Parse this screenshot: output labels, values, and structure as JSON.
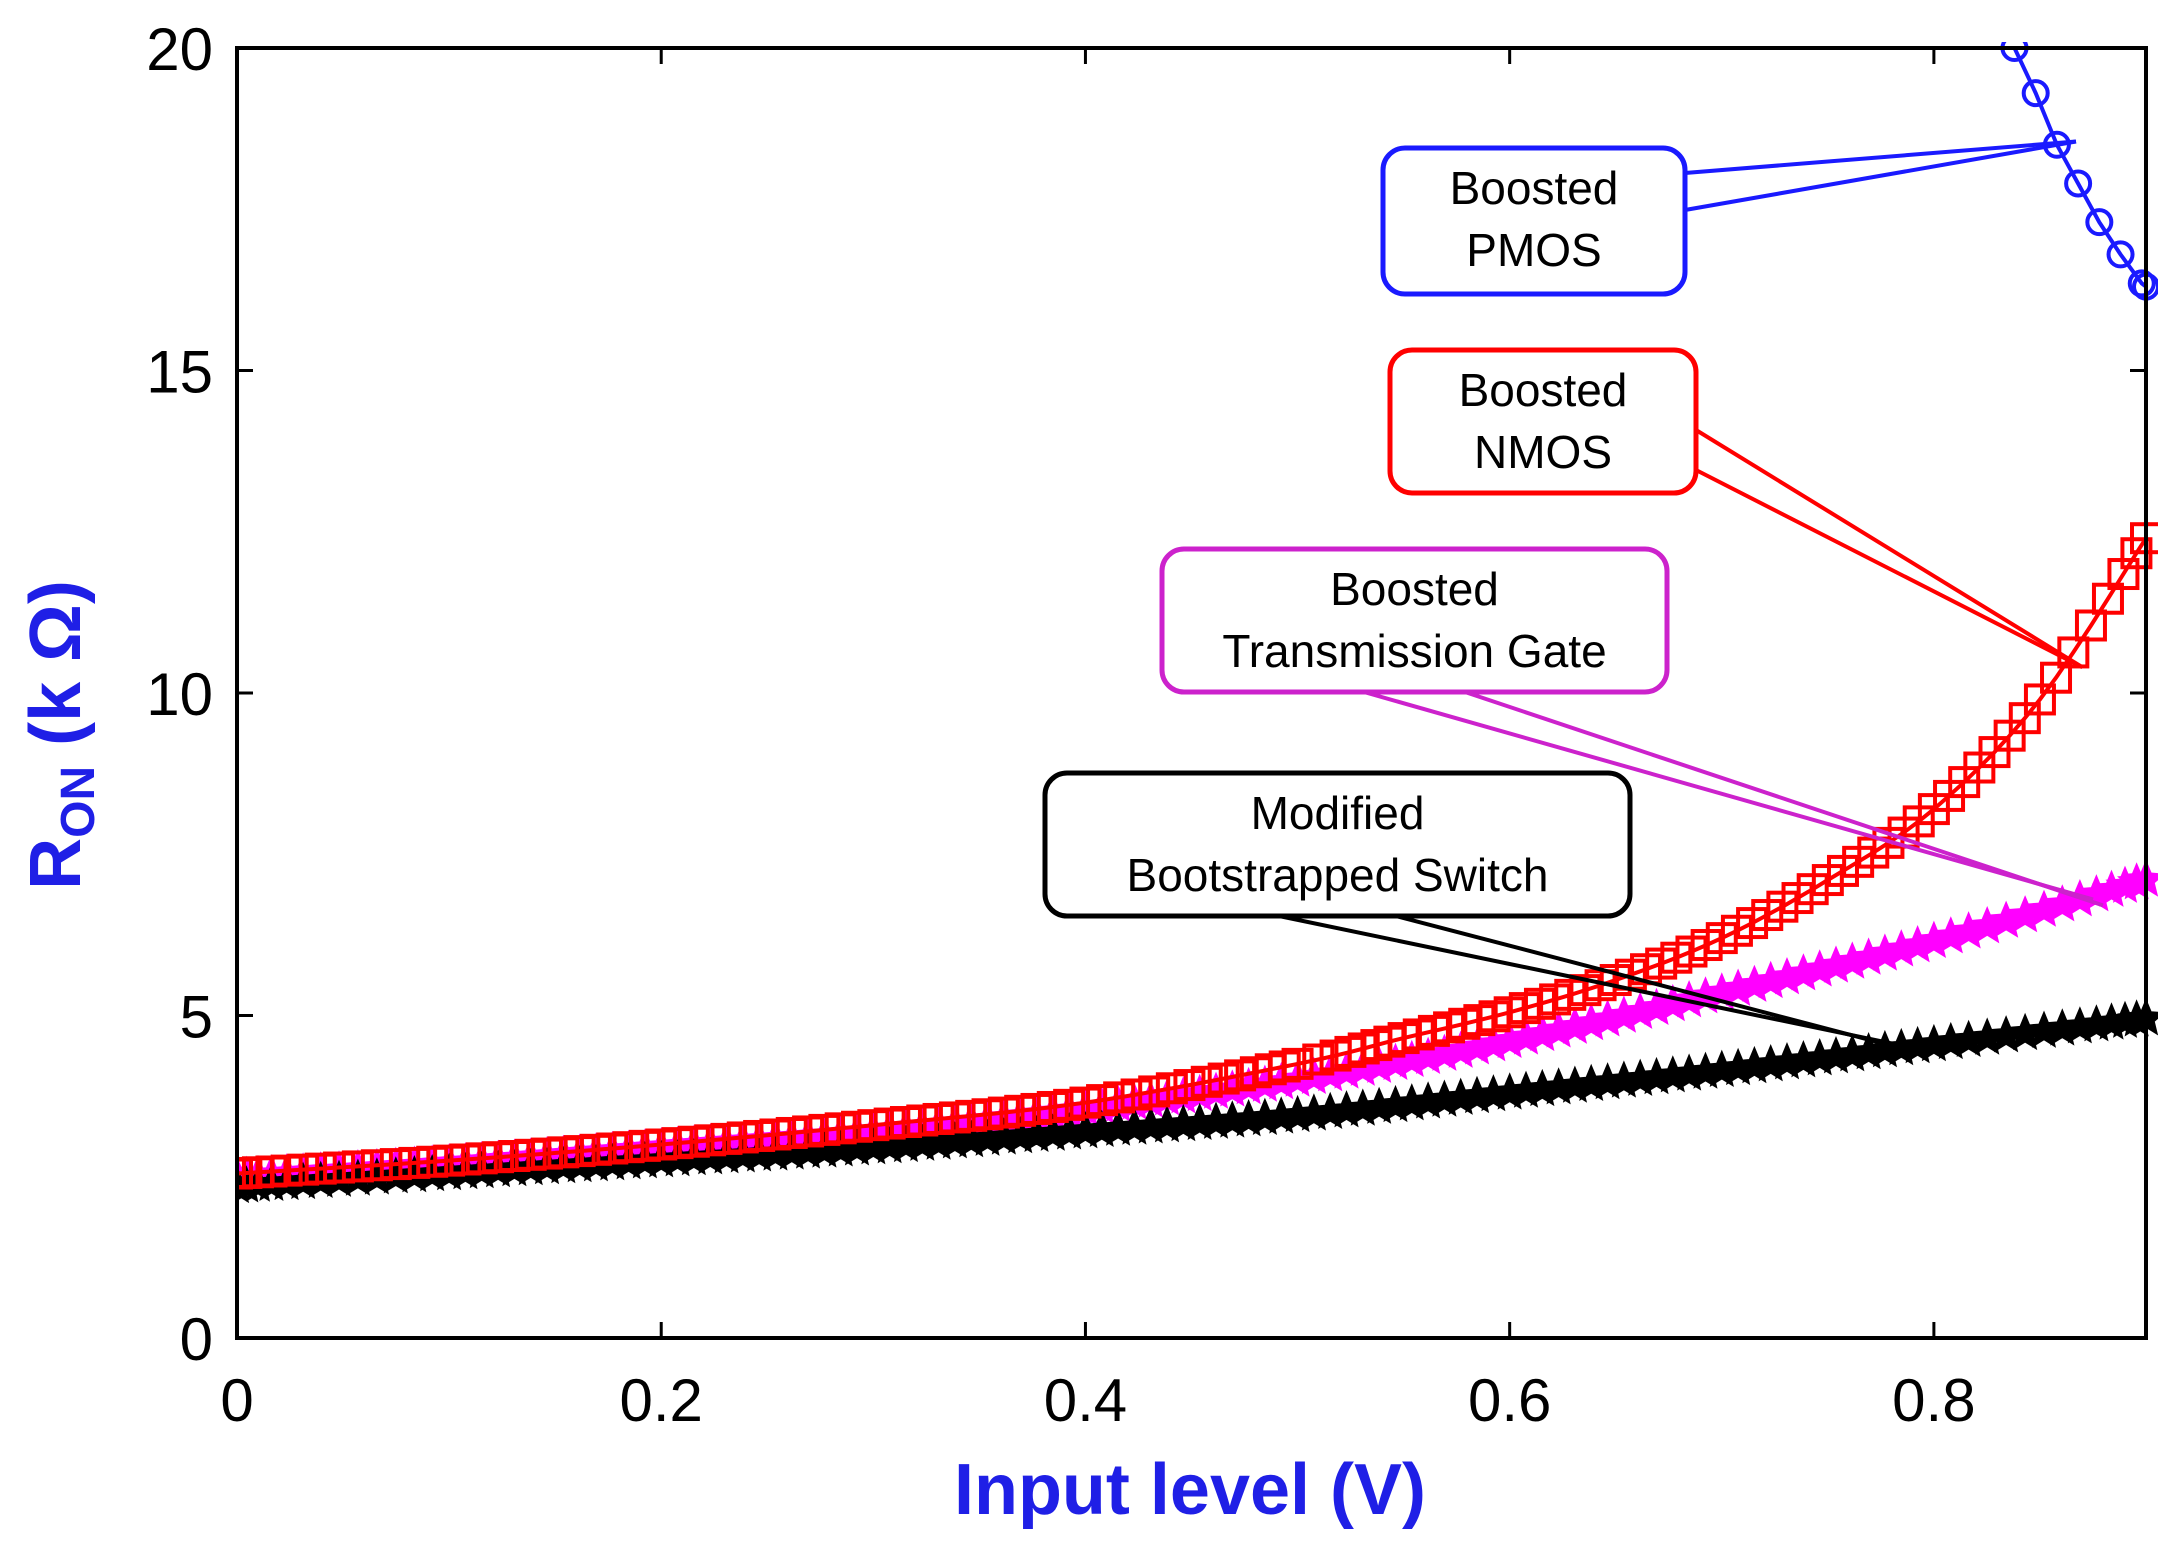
{
  "chart_data": {
    "type": "line",
    "title": "",
    "xlabel": "Input level (V)",
    "ylabel_main": "R",
    "ylabel_sub": "ON",
    "ylabel_unit": " (k Ω)",
    "axis_title_color": "#1f1fe6",
    "xlim": [
      0,
      0.9
    ],
    "ylim": [
      0,
      20
    ],
    "x_ticks": [
      0,
      0.2,
      0.4,
      0.6,
      0.8
    ],
    "x_tick_labels": [
      "0",
      "0.2",
      "0.4",
      "0.6",
      "0.8"
    ],
    "y_ticks": [
      0,
      5,
      10,
      15,
      20
    ],
    "y_tick_labels": [
      "0",
      "5",
      "10",
      "15",
      "20"
    ],
    "grid": false,
    "series": [
      {
        "id": "pmos",
        "name": "Boosted PMOS",
        "color": "#1a1aff",
        "marker": "circle",
        "x": [
          0.838,
          0.848,
          0.858,
          0.868,
          0.878,
          0.888,
          0.898,
          0.9
        ],
        "y": [
          20.0,
          19.3,
          18.5,
          17.9,
          17.3,
          16.8,
          16.35,
          16.3
        ]
      },
      {
        "id": "nmos",
        "name": "Boosted NMOS",
        "color": "#ff0000",
        "marker": "square",
        "x": [
          0,
          0.1,
          0.2,
          0.3,
          0.4,
          0.5,
          0.55,
          0.6,
          0.65,
          0.7,
          0.75,
          0.8,
          0.85,
          0.9
        ],
        "y": [
          2.55,
          2.75,
          3.0,
          3.3,
          3.65,
          4.25,
          4.65,
          5.05,
          5.55,
          6.2,
          7.1,
          8.2,
          9.9,
          12.4
        ]
      },
      {
        "id": "tg",
        "name": "Boosted Transmission Gate",
        "color": "#ff00ff",
        "marker": "star",
        "x": [
          0,
          0.1,
          0.2,
          0.3,
          0.4,
          0.5,
          0.6,
          0.7,
          0.8,
          0.9
        ],
        "y": [
          2.5,
          2.7,
          2.95,
          3.2,
          3.55,
          4.0,
          4.6,
          5.35,
          6.15,
          7.1
        ]
      },
      {
        "id": "mbs",
        "name": "Modified Bootstrapped Switch",
        "color": "#000000",
        "marker": "star",
        "x": [
          0,
          0.1,
          0.2,
          0.3,
          0.4,
          0.5,
          0.6,
          0.7,
          0.8,
          0.9
        ],
        "y": [
          2.35,
          2.55,
          2.75,
          2.95,
          3.2,
          3.45,
          3.8,
          4.15,
          4.55,
          4.95
        ]
      }
    ],
    "annotations": [
      {
        "series": "pmos",
        "lines": [
          "Boosted",
          "PMOS"
        ],
        "color": "#1a1aff"
      },
      {
        "series": "nmos",
        "lines": [
          "Boosted",
          "NMOS"
        ],
        "color": "#ff0000"
      },
      {
        "series": "tg",
        "lines": [
          "Boosted",
          "Transmission Gate"
        ],
        "color": "#cc22cc"
      },
      {
        "series": "mbs",
        "lines": [
          "Modified",
          "Bootstrapped Switch"
        ],
        "color": "#000000"
      }
    ]
  }
}
